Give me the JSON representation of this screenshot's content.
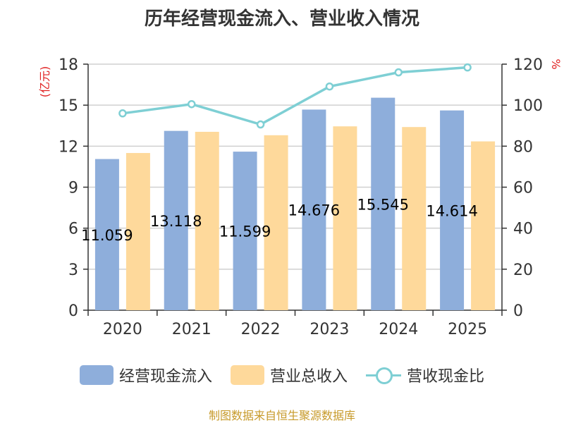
{
  "chart_data": {
    "type": "bar",
    "title": "历年经营现金流入、营业收入情况",
    "categories": [
      "2020",
      "2021",
      "2022",
      "2023",
      "2024",
      "2025"
    ],
    "series": [
      {
        "name": "经营现金流入",
        "kind": "bar",
        "axis": "left",
        "color": "#8eaedb",
        "values": [
          11.059,
          13.118,
          11.599,
          14.676,
          15.545,
          14.614
        ],
        "labels": [
          "11.059",
          "13.118",
          "11.599",
          "14.676",
          "15.545",
          "14.614"
        ]
      },
      {
        "name": "营业总收入",
        "kind": "bar",
        "axis": "left",
        "color": "#fed99b",
        "values": [
          11.5,
          13.05,
          12.8,
          13.45,
          13.4,
          12.35
        ]
      },
      {
        "name": "营收现金比",
        "kind": "line",
        "axis": "right",
        "color": "#7ecfd4",
        "values": [
          96,
          100.5,
          90.6,
          109.1,
          116,
          118.4
        ]
      }
    ],
    "y_left": {
      "label": "(亿元)",
      "min": 0,
      "max": 18,
      "ticks": [
        "0",
        "3",
        "6",
        "9",
        "12",
        "15",
        "18"
      ]
    },
    "y_right": {
      "label": "%",
      "min": 0,
      "max": 120,
      "ticks": [
        "0",
        "20",
        "40",
        "60",
        "80",
        "100",
        "120"
      ]
    },
    "grid": true,
    "legend_position": "bottom"
  },
  "source": "制图数据来自恒生聚源数据库"
}
